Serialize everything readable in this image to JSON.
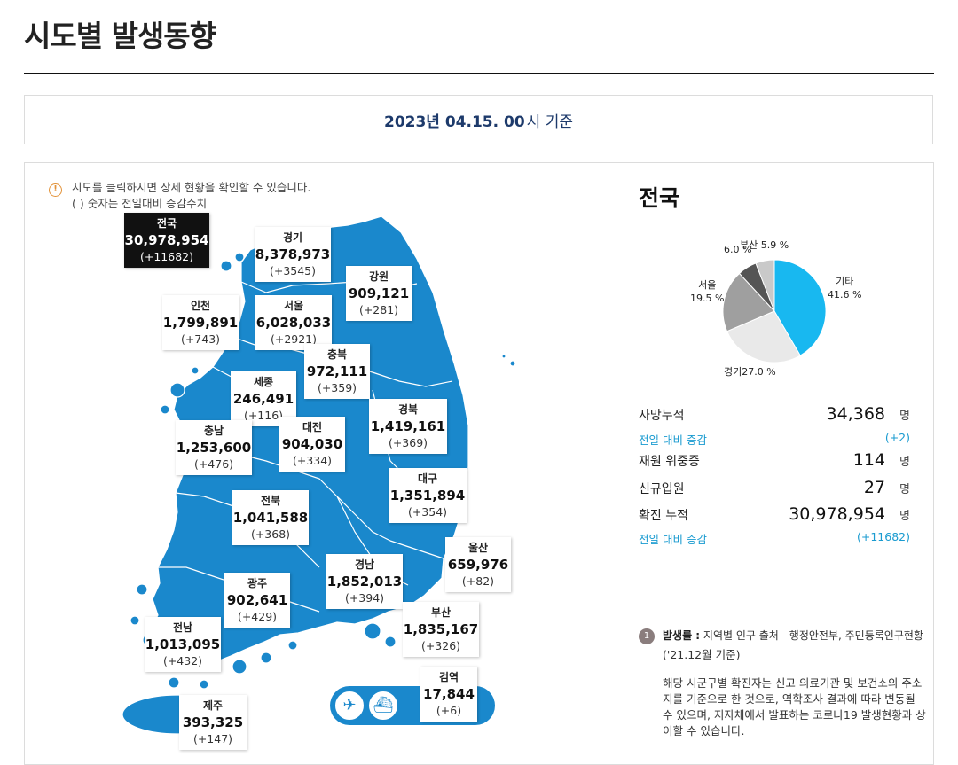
{
  "page": {
    "title": "시도별 발생동향"
  },
  "date": {
    "strong": "2023년 04.15. 00",
    "suffix": "시 기준"
  },
  "notice": {
    "icon": "info-icon",
    "line1": "시도를 클릭하시면 상세 현황을 확인할 수 있습니다.",
    "line2": "( ) 숫자는 전일대비 증감수치"
  },
  "regions": [
    {
      "id": "national",
      "name": "전국",
      "count": "30,978,954",
      "delta": "(+11682)"
    },
    {
      "id": "gyeonggi",
      "name": "경기",
      "count": "8,378,973",
      "delta": "(+3545)"
    },
    {
      "id": "gangwon",
      "name": "강원",
      "count": "909,121",
      "delta": "(+281)"
    },
    {
      "id": "incheon",
      "name": "인천",
      "count": "1,799,891",
      "delta": "(+743)"
    },
    {
      "id": "seoul",
      "name": "서울",
      "count": "6,028,033",
      "delta": "(+2921)"
    },
    {
      "id": "chungbuk",
      "name": "충북",
      "count": "972,111",
      "delta": "(+359)"
    },
    {
      "id": "sejong",
      "name": "세종",
      "count": "246,491",
      "delta": "(+116)"
    },
    {
      "id": "gyeongbuk",
      "name": "경북",
      "count": "1,419,161",
      "delta": "(+369)"
    },
    {
      "id": "chungnam",
      "name": "충남",
      "count": "1,253,600",
      "delta": "(+476)"
    },
    {
      "id": "daejeon",
      "name": "대전",
      "count": "904,030",
      "delta": "(+334)"
    },
    {
      "id": "daegu",
      "name": "대구",
      "count": "1,351,894",
      "delta": "(+354)"
    },
    {
      "id": "jeonbuk",
      "name": "전북",
      "count": "1,041,588",
      "delta": "(+368)"
    },
    {
      "id": "ulsan",
      "name": "울산",
      "count": "659,976",
      "delta": "(+82)"
    },
    {
      "id": "gyeongnam",
      "name": "경남",
      "count": "1,852,013",
      "delta": "(+394)"
    },
    {
      "id": "gwangju",
      "name": "광주",
      "count": "902,641",
      "delta": "(+429)"
    },
    {
      "id": "busan",
      "name": "부산",
      "count": "1,835,167",
      "delta": "(+326)"
    },
    {
      "id": "jeonnam",
      "name": "전남",
      "count": "1,013,095",
      "delta": "(+432)"
    },
    {
      "id": "quarantine",
      "name": "검역",
      "count": "17,844",
      "delta": "(+6)"
    },
    {
      "id": "jeju",
      "name": "제주",
      "count": "393,325",
      "delta": "(+147)"
    }
  ],
  "transport": {
    "plane_icon": "airplane-icon",
    "ship_icon": "ship-icon"
  },
  "colors": {
    "map_fill": "#1a88cc",
    "accent_blue": "#1a9bd0",
    "title_navy": "#1d3a6b"
  },
  "right": {
    "title": "전국",
    "stats": {
      "deaths_label": "사망누적",
      "deaths_value": "34,368",
      "unit": "명",
      "deaths_change_label": "전일 대비 증감",
      "deaths_change_value": "(+2)",
      "critical_label": "재원 위중증",
      "critical_value": "114",
      "admitted_label": "신규입원",
      "admitted_value": "27",
      "confirmed_label": "확진 누적",
      "confirmed_value": "30,978,954",
      "confirmed_change_label": "전일 대비 증감",
      "confirmed_change_value": "(+11682)"
    },
    "footnote": {
      "badge": "1",
      "head_bold": "발생률 :",
      "head_rest": " 지역별 인구 출처 - 행정안전부, 주민등록인구현황",
      "date": "('21.12월 기준)",
      "body": "해당 시군구별 확진자는 신고 의료기관 및 보건소의 주소지를 기준으로 한 것으로, 역학조사 결과에 따라 변동될 수 있으며, 지자체에서 발표하는 코로나19 발생현황과 상이할 수 있습니다."
    }
  },
  "chart_data": {
    "type": "pie",
    "slices": [
      {
        "name": "기타",
        "value": 41.6,
        "color": "#18b8f0"
      },
      {
        "name": "경기",
        "value": 27.0,
        "color": "#e9e9e9"
      },
      {
        "name": "서울",
        "value": 19.5,
        "color": "#9f9f9f"
      },
      {
        "name": "",
        "value": 6.0,
        "color": "#555555"
      },
      {
        "name": "부산",
        "value": 5.9,
        "color": "#c9c9c9"
      }
    ],
    "labels": [
      {
        "name": "기타",
        "value": "41.6 %"
      },
      {
        "name": "경기",
        "value": "27.0 %"
      },
      {
        "name": "서울",
        "value": "19.5 %"
      },
      {
        "name": "",
        "value": "6.0 %"
      },
      {
        "name": "부산",
        "value": "5.9 %"
      }
    ]
  }
}
